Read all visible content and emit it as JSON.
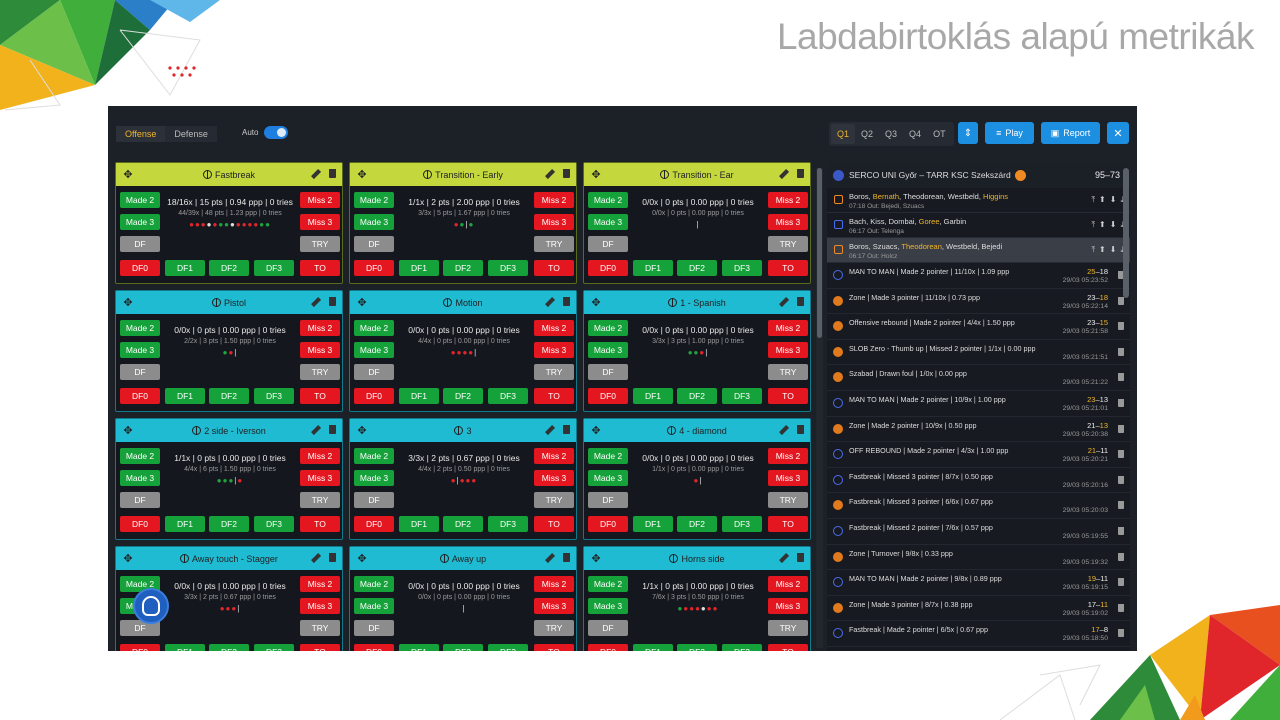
{
  "slide_title": "Labdabirtoklás alapú metrikák",
  "modes": [
    "Offense",
    "Defense"
  ],
  "auto_label": "Auto",
  "quarters": [
    "Q1",
    "Q2",
    "Q3",
    "Q4",
    "OT"
  ],
  "toolbar": {
    "play": "Play",
    "report": "Report",
    "swap_icon": "swap-vertical-icon",
    "close_icon": "close-icon"
  },
  "buttons": {
    "made2": "Made 2",
    "made3": "Made 3",
    "df": "DF",
    "miss2": "Miss 2",
    "miss3": "Miss 3",
    "try": "TRY",
    "df0": "DF0",
    "df1": "DF1",
    "df2": "DF2",
    "df3": "DF3",
    "to": "TO"
  },
  "cards": [
    {
      "title": "Fastbreak",
      "color": "green",
      "stat": "18/16x | 15 pts | 0.94 ppp | 0 tries",
      "sub": "44/39x | 48 pts | 1.23 ppp | 0 tries",
      "dots": "rrrwrggwrrrrgg"
    },
    {
      "title": "Transition - Early",
      "color": "green",
      "stat": "1/1x | 2 pts | 2.00 ppp | 0 tries",
      "sub": "3/3x | 5 pts | 1.67 ppp | 0 tries",
      "dots": "rg|g"
    },
    {
      "title": "Transition - Ear",
      "color": "green",
      "stat": "0/0x | 0 pts | 0.00 ppp | 0 tries",
      "sub": "0/0x | 0 pts | 0.00 ppp | 0 tries",
      "dots": "|"
    },
    {
      "title": "Pistol",
      "color": "blue",
      "stat": "0/0x | 0 pts | 0.00 ppp | 0 tries",
      "sub": "2/2x | 3 pts | 1.50 ppp | 0 tries",
      "dots": "gr|"
    },
    {
      "title": "Motion",
      "color": "blue",
      "stat": "0/0x | 0 pts | 0.00 ppp | 0 tries",
      "sub": "4/4x | 0 pts | 0.00 ppp | 0 tries",
      "dots": "rrrr|"
    },
    {
      "title": "1 - Spanish",
      "color": "blue",
      "stat": "0/0x | 0 pts | 0.00 ppp | 0 tries",
      "sub": "3/3x | 3 pts | 1.00 ppp | 0 tries",
      "dots": "ggr|"
    },
    {
      "title": "2 side - Iverson",
      "color": "blue",
      "stat": "1/1x | 0 pts | 0.00 ppp | 0 tries",
      "sub": "4/4x | 6 pts | 1.50 ppp | 0 tries",
      "dots": "ggg|r"
    },
    {
      "title": "3",
      "color": "blue",
      "stat": "3/3x | 2 pts | 0.67 ppp | 0 tries",
      "sub": "4/4x | 2 pts | 0.50 ppp | 0 tries",
      "dots": "r|rrr"
    },
    {
      "title": "4 - diamond",
      "color": "blue",
      "stat": "0/0x | 0 pts | 0.00 ppp | 0 tries",
      "sub": "1/1x | 0 pts | 0.00 ppp | 0 tries",
      "dots": "r|"
    },
    {
      "title": "Away touch - Stagger",
      "color": "blue",
      "stat": "0/0x | 0 pts | 0.00 ppp | 0 tries",
      "sub": "3/3x | 2 pts | 0.67 ppp | 0 tries",
      "dots": "rrr|"
    },
    {
      "title": "Away up",
      "color": "blue",
      "stat": "0/0x | 0 pts | 0.00 ppp | 0 tries",
      "sub": "0/0x | 0 pts | 0.00 ppp | 0 tries",
      "dots": "|"
    },
    {
      "title": "Horns side",
      "color": "blue",
      "stat": "1/1x | 0 pts | 0.00 ppp | 0 tries",
      "sub": "7/6x | 3 pts | 0.50 ppp | 0 tries",
      "dots": "grrrwrr"
    }
  ],
  "match": {
    "title": "SERCO UNI Győr – TARR KSC Szekszárd",
    "score": "95–73"
  },
  "lineups": [
    {
      "players": [
        "Boros",
        "Bernath",
        "Theodorean",
        "Westbeld",
        "Higgins"
      ],
      "hl": [
        1,
        4
      ],
      "sub": "07:18 Out: Bejedi, Szuacs",
      "sel": false,
      "color": "orange"
    },
    {
      "players": [
        "Bach",
        "Kiss",
        "Dombai",
        "Goree",
        "Garbin"
      ],
      "hl": [
        3
      ],
      "sub": "06:17 Out: Telenga",
      "sel": false,
      "color": "blue"
    },
    {
      "players": [
        "Boros",
        "Szuacs",
        "Theodorean",
        "Westbeld",
        "Bejedi"
      ],
      "hl": [
        2
      ],
      "sub": "06:17 Out: Holcz",
      "sel": true,
      "color": "orange"
    }
  ],
  "events": [
    {
      "text": "MAN TO MAN | Made 2 pointer | 11/10x | 1.09 ppp",
      "a": "25",
      "b": "18",
      "hl": "a",
      "time": "29/03 05:23:52",
      "icon": "def"
    },
    {
      "text": "Zone | Made 3 pointer | 11/10x | 0.73 ppp",
      "a": "23",
      "b": "18",
      "hl": "b",
      "time": "29/03 05:22:14",
      "icon": "ball"
    },
    {
      "text": "Offensive rebound | Made 2 pointer | 4/4x | 1.50 ppp",
      "a": "23",
      "b": "15",
      "hl": "b",
      "time": "29/03 05:21:58",
      "icon": "ball"
    },
    {
      "text": "SLOB Zero - Thumb up | Missed 2 pointer | 1/1x | 0.00 ppp",
      "a": "",
      "b": "",
      "hl": "",
      "time": "29/03 05:21:51",
      "icon": "ball"
    },
    {
      "text": "Szabad | Drawn foul | 1/0x | 0.00 ppp",
      "a": "",
      "b": "",
      "hl": "",
      "time": "29/03 05:21:22",
      "icon": "ball"
    },
    {
      "text": "MAN TO MAN | Made 2 pointer | 10/9x | 1.00 ppp",
      "a": "23",
      "b": "13",
      "hl": "a",
      "time": "29/03 05:21:01",
      "icon": "def"
    },
    {
      "text": "Zone | Made 2 pointer | 10/9x | 0.50 ppp",
      "a": "21",
      "b": "13",
      "hl": "b",
      "time": "29/03 05:20:38",
      "icon": "ball"
    },
    {
      "text": "OFF REBOUND | Made 2 pointer | 4/3x | 1.00 ppp",
      "a": "21",
      "b": "11",
      "hl": "a",
      "time": "29/03 05:20:21",
      "icon": "def"
    },
    {
      "text": "Fastbreak | Missed 3 pointer | 8/7x | 0.50 ppp",
      "a": "",
      "b": "",
      "hl": "",
      "time": "29/03 05:20:16",
      "icon": "def"
    },
    {
      "text": "Fastbreak | Missed 3 pointer | 6/6x | 0.67 ppp",
      "a": "",
      "b": "",
      "hl": "",
      "time": "29/03 05:20:03",
      "icon": "ball"
    },
    {
      "text": "Fastbreak | Missed 2 pointer | 7/6x | 0.57 ppp",
      "a": "",
      "b": "",
      "hl": "",
      "time": "29/03 05:19:55",
      "icon": "def"
    },
    {
      "text": "Zone | Turnover | 9/8x | 0.33 ppp",
      "a": "",
      "b": "",
      "hl": "",
      "time": "29/03 05:19:32",
      "icon": "ball"
    },
    {
      "text": "MAN TO MAN | Made 2 pointer | 9/8x | 0.89 ppp",
      "a": "19",
      "b": "11",
      "hl": "a",
      "time": "29/03 05:19:15",
      "icon": "def"
    },
    {
      "text": "Zone | Made 3 pointer | 8/7x | 0.38 ppp",
      "a": "17",
      "b": "11",
      "hl": "b",
      "time": "29/03 05:19:02",
      "icon": "ball"
    },
    {
      "text": "Fastbreak | Made 2 pointer | 6/5x | 0.67 ppp",
      "a": "17",
      "b": "8",
      "hl": "a",
      "time": "29/03 05:18:50",
      "icon": "def"
    }
  ]
}
